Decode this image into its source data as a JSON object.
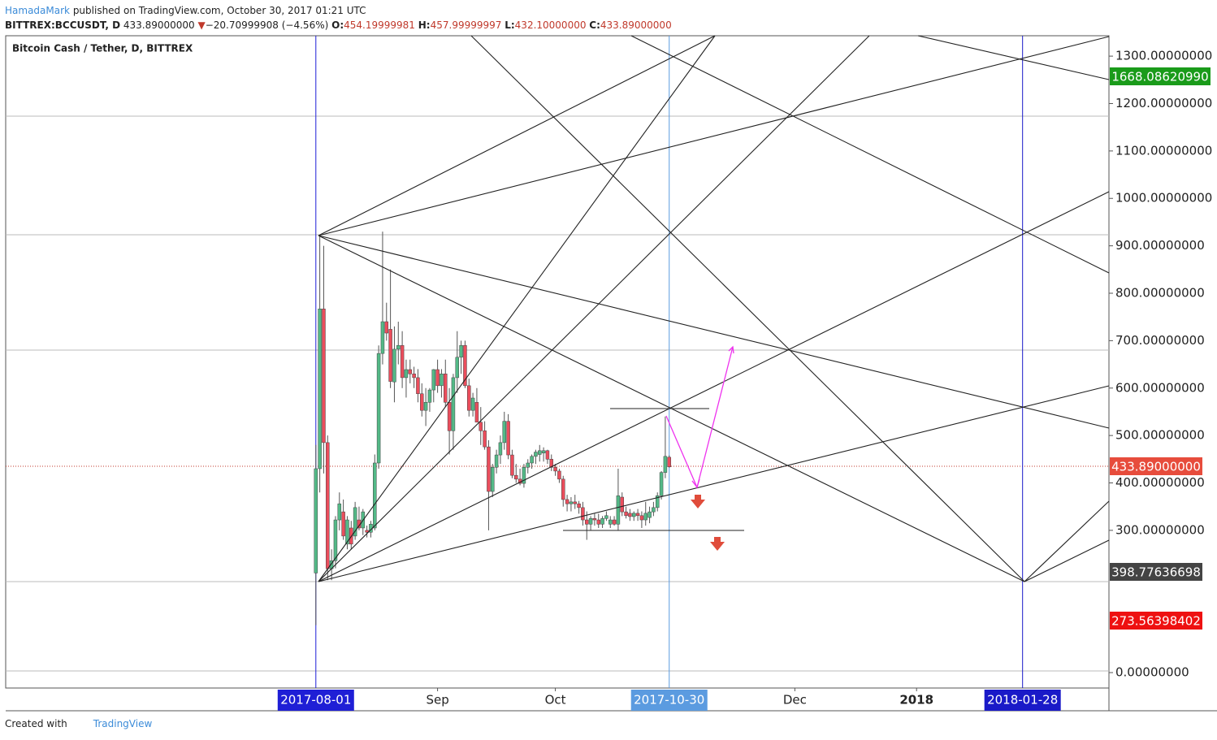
{
  "header": {
    "author": "HamadaMark",
    "published": "published on TradingView.com, October 30, 2017 01:21 UTC",
    "symbol": "BITTREX:BCCUSDT, D",
    "price": "433.89000000",
    "arrow": "▼",
    "change": "−20.70999908 (−4.56%)",
    "ohlc": [
      {
        "label": "O:",
        "value": "454.19999981"
      },
      {
        "label": "H:",
        "value": "457.99999997"
      },
      {
        "label": "L:",
        "value": "432.10000000"
      },
      {
        "label": "C:",
        "value": "433.89000000"
      }
    ]
  },
  "footer": {
    "created": "Created with",
    "brand": "TradingView"
  },
  "price_labels": [
    {
      "text": "1668.08620990",
      "color": "#1a9b1a"
    },
    {
      "text": "433.89000000",
      "color": "#e74c3c"
    },
    {
      "text": "398.77636698",
      "color": "#444444"
    },
    {
      "text": "273.56398402",
      "color": "#ee1111"
    }
  ],
  "chart_data": {
    "type": "candlestick",
    "title": "Bitcoin Cash / Tether, D, BITTREX",
    "x": [
      "2017-08-01",
      "2017-08-02",
      "2017-08-03",
      "2017-08-04",
      "2017-08-05",
      "2017-08-06",
      "2017-08-07",
      "2017-08-08",
      "2017-08-09",
      "2017-08-10",
      "2017-08-11",
      "2017-08-12",
      "2017-08-13",
      "2017-08-14",
      "2017-08-15",
      "2017-08-16",
      "2017-08-17",
      "2017-08-18",
      "2017-08-19",
      "2017-08-20",
      "2017-08-21",
      "2017-08-22",
      "2017-08-23",
      "2017-08-24",
      "2017-08-25",
      "2017-08-26",
      "2017-08-27",
      "2017-08-28",
      "2017-08-29",
      "2017-08-30",
      "2017-08-31",
      "2017-09-01",
      "2017-09-02",
      "2017-09-03",
      "2017-09-04",
      "2017-09-05",
      "2017-09-06",
      "2017-09-07",
      "2017-09-08",
      "2017-09-09",
      "2017-09-10",
      "2017-09-11",
      "2017-09-12",
      "2017-09-13",
      "2017-09-14",
      "2017-09-15",
      "2017-09-16",
      "2017-09-17",
      "2017-09-18",
      "2017-09-19",
      "2017-09-20",
      "2017-09-21",
      "2017-09-22",
      "2017-09-23",
      "2017-09-24",
      "2017-09-25",
      "2017-09-26",
      "2017-09-27",
      "2017-09-28",
      "2017-09-29",
      "2017-09-30",
      "2017-10-01",
      "2017-10-02",
      "2017-10-03",
      "2017-10-04",
      "2017-10-05",
      "2017-10-06",
      "2017-10-07",
      "2017-10-08",
      "2017-10-09",
      "2017-10-10",
      "2017-10-11",
      "2017-10-12",
      "2017-10-13",
      "2017-10-14",
      "2017-10-15",
      "2017-10-16",
      "2017-10-17",
      "2017-10-18",
      "2017-10-19",
      "2017-10-20",
      "2017-10-21",
      "2017-10-22",
      "2017-10-23",
      "2017-10-24",
      "2017-10-25",
      "2017-10-26",
      "2017-10-27",
      "2017-10-28",
      "2017-10-29",
      "2017-10-30"
    ],
    "open": [
      210,
      430,
      767,
      485,
      219,
      236,
      322,
      339,
      271,
      305,
      288,
      322,
      305,
      300,
      296,
      305,
      442,
      673,
      740,
      724,
      613,
      682,
      690,
      622,
      639,
      630,
      622,
      588,
      553,
      570,
      596,
      639,
      605,
      630,
      570,
      510,
      622,
      665,
      690,
      605,
      553,
      570,
      528,
      510,
      476,
      382,
      433,
      459,
      485,
      530,
      459,
      416,
      408,
      399,
      433,
      442,
      456,
      460,
      463,
      468,
      450,
      433,
      425,
      408,
      365,
      356,
      360,
      356,
      348,
      322,
      313,
      325,
      322,
      313,
      325,
      313,
      322,
      313,
      370,
      339,
      336,
      329,
      336,
      331,
      322,
      327,
      339,
      348,
      373,
      422,
      454.19999981
    ],
    "high": [
      480,
      920,
      900,
      500,
      260,
      330,
      380,
      365,
      330,
      320,
      360,
      350,
      345,
      310,
      320,
      460,
      690,
      930,
      780,
      850,
      730,
      740,
      720,
      660,
      660,
      645,
      640,
      610,
      600,
      600,
      640,
      660,
      640,
      660,
      600,
      630,
      720,
      700,
      700,
      620,
      590,
      600,
      560,
      530,
      490,
      440,
      470,
      500,
      550,
      545,
      470,
      440,
      430,
      440,
      450,
      460,
      470,
      480,
      475,
      470,
      460,
      440,
      430,
      415,
      375,
      370,
      375,
      362,
      360,
      340,
      330,
      335,
      335,
      330,
      340,
      330,
      330,
      430,
      380,
      350,
      345,
      340,
      345,
      340,
      360,
      350,
      360,
      380,
      425,
      540,
      457.99999997
    ],
    "low": [
      100,
      380,
      420,
      195,
      195,
      220,
      300,
      280,
      260,
      260,
      280,
      300,
      290,
      285,
      285,
      300,
      430,
      650,
      700,
      600,
      570,
      650,
      600,
      580,
      610,
      600,
      570,
      540,
      520,
      550,
      570,
      590,
      580,
      560,
      460,
      470,
      590,
      630,
      600,
      540,
      540,
      530,
      480,
      470,
      300,
      370,
      420,
      440,
      470,
      450,
      410,
      400,
      395,
      390,
      420,
      430,
      440,
      445,
      445,
      440,
      425,
      415,
      400,
      350,
      340,
      340,
      345,
      335,
      310,
      280,
      300,
      310,
      305,
      305,
      320,
      305,
      310,
      300,
      330,
      325,
      320,
      320,
      320,
      305,
      310,
      315,
      330,
      340,
      365,
      410,
      432.1
    ],
    "close": [
      430,
      767,
      485,
      219,
      236,
      322,
      356,
      288,
      322,
      271,
      348,
      305,
      339,
      296,
      313,
      442,
      673,
      740,
      716,
      614,
      682,
      690,
      622,
      639,
      630,
      622,
      588,
      553,
      570,
      596,
      639,
      605,
      630,
      570,
      510,
      622,
      665,
      690,
      605,
      553,
      579,
      528,
      510,
      476,
      382,
      433,
      459,
      485,
      530,
      459,
      416,
      408,
      399,
      433,
      442,
      456,
      465,
      468,
      468,
      450,
      433,
      425,
      408,
      365,
      356,
      360,
      356,
      348,
      322,
      313,
      325,
      322,
      313,
      325,
      331,
      322,
      313,
      373,
      339,
      331,
      329,
      336,
      331,
      322,
      336,
      339,
      348,
      373,
      422,
      456,
      433.89
    ],
    "up_color": "#53b987",
    "down_color": "#eb4d5c",
    "xlim": [
      "2017-05-14",
      "2018-02-19"
    ],
    "xticks": [
      {
        "value": "2017-09-01",
        "label": "Sep"
      },
      {
        "value": "2017-10-01",
        "label": "Oct"
      },
      {
        "value": "2017-12-01",
        "label": "Dec"
      },
      {
        "value": "2018-01-01",
        "label": "2018"
      }
    ],
    "markers": [
      {
        "value": "2017-08-01",
        "label": "2017-08-01",
        "color": "#1f1fd6"
      },
      {
        "value": "2017-10-30",
        "label": "2017-10-30",
        "color": "#5b9be0"
      },
      {
        "value": "2018-01-28",
        "label": "2018-01-28",
        "color": "#1a1ac8"
      }
    ],
    "ylim": [
      -32.5,
      1343
    ],
    "yticks": [
      {
        "value": 0,
        "label": "0.00000000"
      },
      {
        "value": 300,
        "label": "300.00000000"
      },
      {
        "value": 400,
        "label": "400.00000000"
      },
      {
        "value": 500,
        "label": "500.00000000"
      },
      {
        "value": 600,
        "label": "600.00000000"
      },
      {
        "value": 700,
        "label": "700.00000000"
      },
      {
        "value": 800,
        "label": "800.00000000"
      },
      {
        "value": 900,
        "label": "900.00000000"
      },
      {
        "value": 1000,
        "label": "1000.00000000"
      },
      {
        "value": 1100,
        "label": "1100.00000000"
      },
      {
        "value": 1200,
        "label": "1200.00000000"
      },
      {
        "value": 1300,
        "label": "1300.00000000"
      }
    ]
  }
}
